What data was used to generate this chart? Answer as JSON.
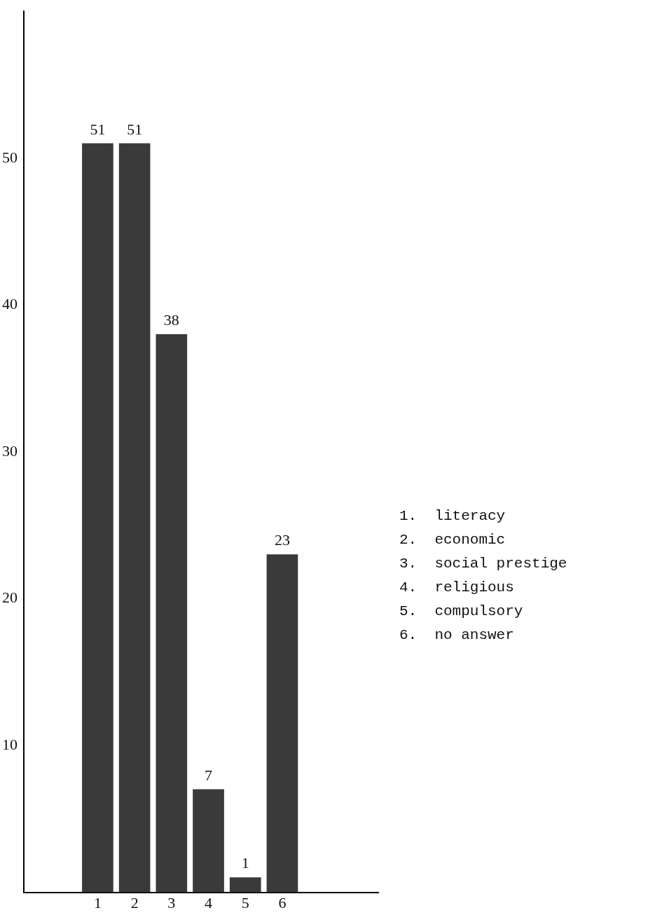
{
  "chart_data": {
    "type": "bar",
    "categories": [
      "1",
      "2",
      "3",
      "4",
      "5",
      "6"
    ],
    "values": [
      51,
      51,
      38,
      7,
      1,
      23
    ],
    "color": "#3a3a3a",
    "ylim": [
      0,
      60
    ],
    "yticks": [
      10,
      20,
      30,
      40,
      50
    ],
    "data_labels": true,
    "annotations": [
      "1.  literacy",
      "2.  economic",
      "3.  social prestige",
      "4.  religious",
      "5.  compulsory",
      "6.  no answer"
    ]
  }
}
